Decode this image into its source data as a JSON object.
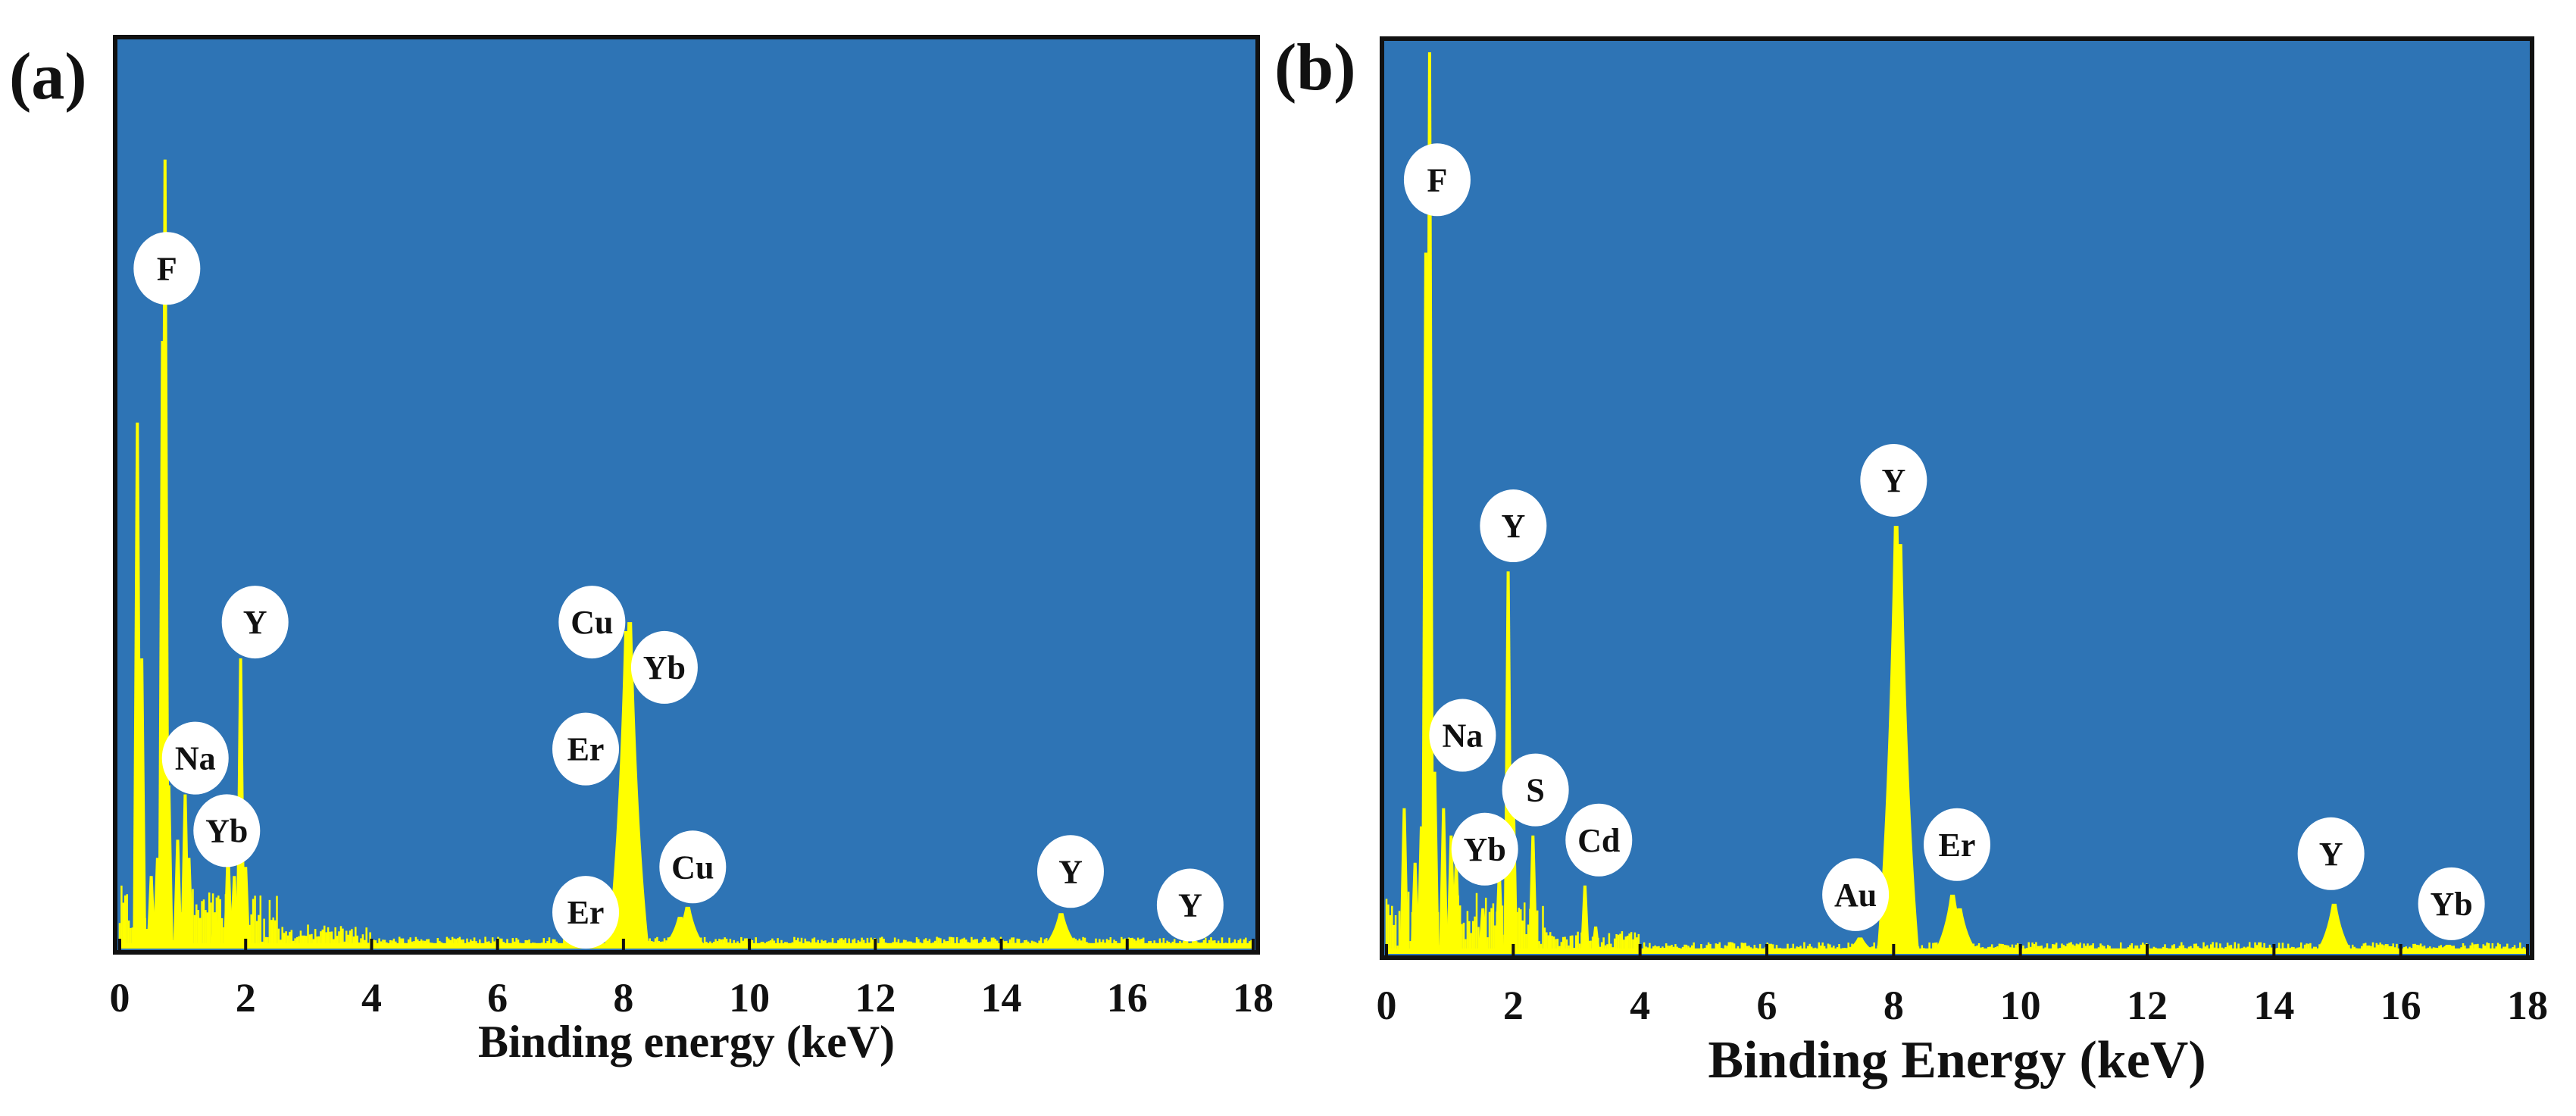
{
  "chart_data": [
    {
      "type": "line",
      "panel_label": "(a)",
      "xlabel": "Binding energy (keV)",
      "ylabel": "",
      "xlim": [
        0,
        18
      ],
      "ylim": [
        0,
        100
      ],
      "x_ticks": [
        "0",
        "2",
        "4",
        "6",
        "8",
        "10",
        "12",
        "14",
        "16",
        "18"
      ],
      "background_color": "#2e74b5",
      "line_color": "#ffff00",
      "grid": false,
      "peaks": [
        {
          "x": 0.28,
          "y": 58
        },
        {
          "x": 0.35,
          "y": 32
        },
        {
          "x": 0.5,
          "y": 8
        },
        {
          "x": 0.6,
          "y": 10
        },
        {
          "x": 0.68,
          "y": 67
        },
        {
          "x": 0.72,
          "y": 87
        },
        {
          "x": 0.78,
          "y": 18
        },
        {
          "x": 0.92,
          "y": 12
        },
        {
          "x": 1.04,
          "y": 17
        },
        {
          "x": 1.1,
          "y": 10
        },
        {
          "x": 1.52,
          "y": 4
        },
        {
          "x": 1.72,
          "y": 11
        },
        {
          "x": 1.82,
          "y": 8
        },
        {
          "x": 1.92,
          "y": 32
        },
        {
          "x": 2.0,
          "y": 9
        },
        {
          "x": 7.4,
          "y": 0.8
        },
        {
          "x": 8.05,
          "y": 35
        },
        {
          "x": 8.1,
          "y": 36
        },
        {
          "x": 8.9,
          "y": 3.5
        },
        {
          "x": 9.02,
          "y": 4.6
        },
        {
          "x": 14.95,
          "y": 3.9
        },
        {
          "x": 16.7,
          "y": 0.5
        }
      ],
      "annotations": [
        {
          "label": "F",
          "x": 0.75,
          "y": 75
        },
        {
          "label": "Y",
          "x": 2.15,
          "y": 36
        },
        {
          "label": "Na",
          "x": 1.2,
          "y": 21
        },
        {
          "label": "Yb",
          "x": 1.7,
          "y": 13
        },
        {
          "label": "Cu",
          "x": 7.5,
          "y": 36
        },
        {
          "label": "Yb",
          "x": 8.65,
          "y": 31
        },
        {
          "label": "Er",
          "x": 7.4,
          "y": 22
        },
        {
          "label": "Cu",
          "x": 9.1,
          "y": 9
        },
        {
          "label": "Er",
          "x": 7.4,
          "y": 4
        },
        {
          "label": "Y",
          "x": 15.1,
          "y": 8.5
        },
        {
          "label": "Y",
          "x": 17.0,
          "y": 4.8
        }
      ]
    },
    {
      "type": "line",
      "panel_label": "(b)",
      "xlabel": "Binding Energy (keV)",
      "ylabel": "",
      "xlim": [
        0,
        18
      ],
      "ylim": [
        0,
        100
      ],
      "x_ticks": [
        "0",
        "2",
        "4",
        "6",
        "8",
        "10",
        "12",
        "14",
        "16",
        "18"
      ],
      "background_color": "#2e74b5",
      "line_color": "#ffff00",
      "grid": false,
      "peaks": [
        {
          "x": 0.28,
          "y": 16
        },
        {
          "x": 0.45,
          "y": 10
        },
        {
          "x": 0.55,
          "y": 14
        },
        {
          "x": 0.62,
          "y": 77
        },
        {
          "x": 0.68,
          "y": 99
        },
        {
          "x": 0.76,
          "y": 20
        },
        {
          "x": 0.9,
          "y": 16
        },
        {
          "x": 1.02,
          "y": 13
        },
        {
          "x": 1.1,
          "y": 10
        },
        {
          "x": 1.52,
          "y": 5
        },
        {
          "x": 1.78,
          "y": 9
        },
        {
          "x": 1.92,
          "y": 42
        },
        {
          "x": 2.0,
          "y": 18
        },
        {
          "x": 2.31,
          "y": 13
        },
        {
          "x": 3.13,
          "y": 7.5
        },
        {
          "x": 3.3,
          "y": 3
        },
        {
          "x": 7.47,
          "y": 1.8
        },
        {
          "x": 8.04,
          "y": 47
        },
        {
          "x": 8.1,
          "y": 45
        },
        {
          "x": 8.93,
          "y": 6.5
        },
        {
          "x": 9.04,
          "y": 5
        },
        {
          "x": 14.95,
          "y": 5.5
        },
        {
          "x": 16.75,
          "y": 1
        }
      ],
      "annotations": [
        {
          "label": "F",
          "x": 0.8,
          "y": 85
        },
        {
          "label": "Y",
          "x": 2.0,
          "y": 47
        },
        {
          "label": "Y",
          "x": 8.0,
          "y": 52
        },
        {
          "label": "Na",
          "x": 1.2,
          "y": 24
        },
        {
          "label": "S",
          "x": 2.35,
          "y": 18
        },
        {
          "label": "Yb",
          "x": 1.55,
          "y": 11.5
        },
        {
          "label": "Cd",
          "x": 3.35,
          "y": 12.5
        },
        {
          "label": "Au",
          "x": 7.4,
          "y": 6.5
        },
        {
          "label": "Er",
          "x": 9.0,
          "y": 12
        },
        {
          "label": "Y",
          "x": 14.9,
          "y": 11
        },
        {
          "label": "Yb",
          "x": 16.8,
          "y": 5.5
        }
      ]
    }
  ]
}
